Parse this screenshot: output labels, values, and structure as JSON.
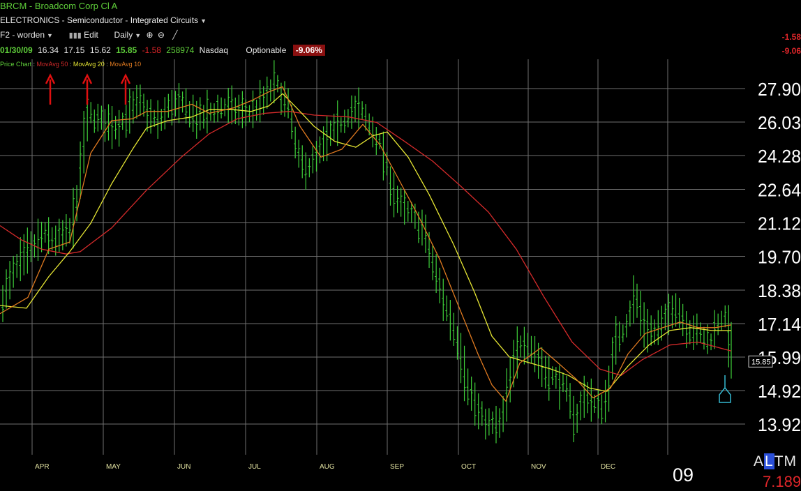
{
  "header": {
    "symbol_line": "BRCM - Broadcom Corp Cl A",
    "industry": "ELECTRONICS - Semiconductor - Integrated Circuits",
    "watchlist": "F2 - worden",
    "edit_label": "Edit",
    "period": "Daily",
    "quote": {
      "date": "01/30/09",
      "open": "16.34",
      "high": "17.15",
      "low": "15.62",
      "close": "15.85",
      "change": "-1.58",
      "volume": "258974",
      "exchange": "Nasdaq",
      "optionable": "Optionable",
      "change_pct": "-9.06%"
    },
    "price_chart_label": "Price Chart",
    "corner_change": "-1.58",
    "corner_pct": "-9.06"
  },
  "footer": {
    "year_label": "09",
    "alt_selector": "ALTM",
    "alt_value": "7.189"
  },
  "colors": {
    "background": "#000000",
    "bars": "#3fd13a",
    "ma50": "#d42a2a",
    "ma20": "#e6e633",
    "ma10": "#e07a20",
    "grid": "#707070",
    "annotation_arrow": "#e01010",
    "marker": "#34b8d0"
  },
  "chart_data": {
    "type": "ohlc",
    "title": "BRCM - Broadcom Corp Cl A",
    "xlabel": "",
    "ylabel": "",
    "x_labels": [
      "APR",
      "MAY",
      "JUN",
      "JUL",
      "AUG",
      "SEP",
      "OCT",
      "NOV",
      "DEC"
    ],
    "y_ticks": [
      27.9,
      26.03,
      24.28,
      22.64,
      21.12,
      19.7,
      18.38,
      17.14,
      15.99,
      14.92,
      13.92
    ],
    "y_tick_labels": [
      "27.90",
      "26.03",
      "24.28",
      "22.64",
      "21.12",
      "19.70",
      "18.38",
      "17.14",
      "15.99",
      "14.92",
      "13.92"
    ],
    "ylim": [
      13.2,
      29.0
    ],
    "y_scale": "log",
    "grid": true,
    "last_price_label": "15.85",
    "legend": [
      {
        "name": "MovAvg 50",
        "color": "#d42a2a"
      },
      {
        "name": "MovAvg 20",
        "color": "#e6e633"
      },
      {
        "name": "MovAvg 10",
        "color": "#e07a20"
      }
    ],
    "price_path": [
      [
        0,
        17.9
      ],
      [
        10,
        18.6
      ],
      [
        22,
        19.3
      ],
      [
        42,
        20.0
      ],
      [
        60,
        20.6
      ],
      [
        80,
        20.4
      ],
      [
        100,
        20.8
      ],
      [
        112,
        23.0
      ],
      [
        122,
        26.6
      ],
      [
        135,
        26.2
      ],
      [
        150,
        26.0
      ],
      [
        165,
        25.8
      ],
      [
        180,
        26.3
      ],
      [
        198,
        27.2
      ],
      [
        212,
        26.3
      ],
      [
        226,
        26.0
      ],
      [
        242,
        27.0
      ],
      [
        262,
        26.9
      ],
      [
        282,
        26.2
      ],
      [
        300,
        26.6
      ],
      [
        318,
        26.9
      ],
      [
        336,
        26.7
      ],
      [
        356,
        26.5
      ],
      [
        376,
        27.2
      ],
      [
        392,
        28.3
      ],
      [
        402,
        27.4
      ],
      [
        412,
        26.9
      ],
      [
        422,
        24.4
      ],
      [
        436,
        23.6
      ],
      [
        452,
        24.2
      ],
      [
        470,
        25.3
      ],
      [
        486,
        26.0
      ],
      [
        500,
        26.6
      ],
      [
        514,
        26.7
      ],
      [
        530,
        25.7
      ],
      [
        545,
        24.6
      ],
      [
        560,
        22.6
      ],
      [
        576,
        21.7
      ],
      [
        590,
        21.4
      ],
      [
        605,
        20.8
      ],
      [
        620,
        19.2
      ],
      [
        636,
        17.8
      ],
      [
        652,
        16.7
      ],
      [
        668,
        15.1
      ],
      [
        684,
        14.2
      ],
      [
        700,
        13.9
      ],
      [
        716,
        13.9
      ],
      [
        730,
        15.4
      ],
      [
        745,
        16.6
      ],
      [
        760,
        16.3
      ],
      [
        776,
        15.6
      ],
      [
        792,
        15.3
      ],
      [
        808,
        15.0
      ],
      [
        822,
        14.0
      ],
      [
        838,
        14.9
      ],
      [
        852,
        14.4
      ],
      [
        866,
        14.5
      ],
      [
        880,
        16.6
      ],
      [
        893,
        17.0
      ],
      [
        908,
        18.2
      ],
      [
        920,
        17.1
      ],
      [
        935,
        16.8
      ],
      [
        950,
        17.2
      ],
      [
        965,
        17.9
      ],
      [
        982,
        17.0
      ],
      [
        1000,
        16.8
      ],
      [
        1015,
        16.5
      ],
      [
        1030,
        17.4
      ],
      [
        1040,
        17.2
      ],
      [
        1048,
        15.85
      ]
    ],
    "series": [
      {
        "name": "MovAvg 50",
        "values": [
          [
            0,
            21.0
          ],
          [
            30,
            20.4
          ],
          [
            60,
            20.0
          ],
          [
            95,
            19.8
          ],
          [
            115,
            19.9
          ],
          [
            160,
            20.9
          ],
          [
            210,
            22.6
          ],
          [
            260,
            24.2
          ],
          [
            300,
            25.4
          ],
          [
            340,
            26.2
          ],
          [
            380,
            26.5
          ],
          [
            415,
            26.6
          ],
          [
            450,
            26.4
          ],
          [
            500,
            26.3
          ],
          [
            540,
            26.0
          ],
          [
            580,
            25.0
          ],
          [
            620,
            24.0
          ],
          [
            660,
            22.8
          ],
          [
            700,
            21.6
          ],
          [
            740,
            20.0
          ],
          [
            780,
            18.1
          ],
          [
            820,
            16.5
          ],
          [
            860,
            15.6
          ],
          [
            890,
            15.4
          ],
          [
            920,
            15.9
          ],
          [
            960,
            16.4
          ],
          [
            1000,
            16.5
          ],
          [
            1048,
            16.2
          ]
        ]
      },
      {
        "name": "MovAvg 20",
        "values": [
          [
            0,
            17.8
          ],
          [
            38,
            17.7
          ],
          [
            70,
            18.9
          ],
          [
            100,
            19.9
          ],
          [
            130,
            21.1
          ],
          [
            160,
            22.9
          ],
          [
            190,
            24.6
          ],
          [
            210,
            25.7
          ],
          [
            240,
            26.1
          ],
          [
            275,
            26.3
          ],
          [
            300,
            26.7
          ],
          [
            335,
            26.7
          ],
          [
            360,
            26.6
          ],
          [
            385,
            26.9
          ],
          [
            405,
            27.6
          ],
          [
            425,
            26.8
          ],
          [
            450,
            25.8
          ],
          [
            480,
            25.0
          ],
          [
            510,
            24.7
          ],
          [
            535,
            25.3
          ],
          [
            555,
            25.5
          ],
          [
            585,
            24.2
          ],
          [
            615,
            22.4
          ],
          [
            650,
            20.2
          ],
          [
            680,
            18.3
          ],
          [
            705,
            16.7
          ],
          [
            730,
            16.0
          ],
          [
            760,
            15.8
          ],
          [
            790,
            15.6
          ],
          [
            815,
            15.4
          ],
          [
            845,
            15.0
          ],
          [
            870,
            14.9
          ],
          [
            900,
            15.7
          ],
          [
            930,
            16.4
          ],
          [
            960,
            16.9
          ],
          [
            990,
            17.0
          ],
          [
            1020,
            16.9
          ],
          [
            1048,
            16.9
          ]
        ]
      },
      {
        "name": "MovAvg 10",
        "values": [
          [
            0,
            17.5
          ],
          [
            40,
            18.1
          ],
          [
            70,
            20.0
          ],
          [
            100,
            20.3
          ],
          [
            130,
            24.4
          ],
          [
            160,
            26.1
          ],
          [
            190,
            26.2
          ],
          [
            210,
            26.6
          ],
          [
            240,
            26.6
          ],
          [
            275,
            27.0
          ],
          [
            300,
            26.5
          ],
          [
            335,
            26.8
          ],
          [
            360,
            27.2
          ],
          [
            385,
            27.7
          ],
          [
            405,
            28.0
          ],
          [
            430,
            25.8
          ],
          [
            460,
            24.2
          ],
          [
            490,
            24.6
          ],
          [
            520,
            25.9
          ],
          [
            545,
            24.8
          ],
          [
            570,
            23.2
          ],
          [
            600,
            21.4
          ],
          [
            630,
            19.6
          ],
          [
            660,
            17.6
          ],
          [
            685,
            16.1
          ],
          [
            705,
            15.1
          ],
          [
            725,
            14.6
          ],
          [
            745,
            15.8
          ],
          [
            775,
            16.3
          ],
          [
            800,
            15.8
          ],
          [
            825,
            15.3
          ],
          [
            850,
            14.7
          ],
          [
            875,
            15.0
          ],
          [
            900,
            16.1
          ],
          [
            925,
            16.8
          ],
          [
            950,
            17.0
          ],
          [
            975,
            17.2
          ],
          [
            1000,
            17.0
          ],
          [
            1025,
            17.0
          ],
          [
            1048,
            17.1
          ]
        ]
      }
    ]
  }
}
